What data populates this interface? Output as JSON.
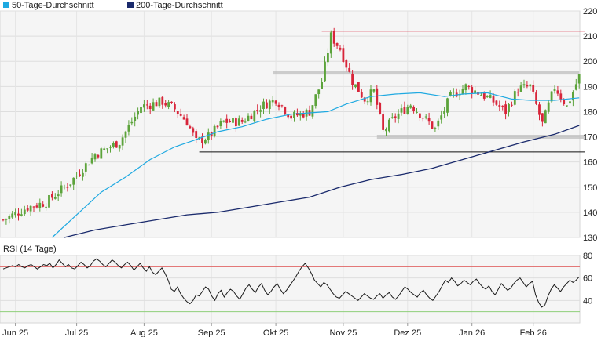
{
  "legend": [
    {
      "label": "50-Tage-Durchschnitt",
      "color": "#1fa9e1"
    },
    {
      "label": "200-Tage-Durchschnitt",
      "color": "#1a2a6c"
    }
  ],
  "chart_data": [
    {
      "type": "candlestick",
      "title": "",
      "xlabel": "",
      "ylabel": "",
      "ylim": [
        130,
        220
      ],
      "y_ticks": [
        130,
        140,
        150,
        160,
        170,
        180,
        190,
        200,
        210,
        220
      ],
      "x_ticks": [
        "Jun 25",
        "Jul 25",
        "Aug 25",
        "Sep 25",
        "Okt 25",
        "Nov 25",
        "Dez 25",
        "Jan 26",
        "Feb 26"
      ],
      "grid": true,
      "colors": {
        "up": "#5ca33b",
        "down": "#d8253a"
      },
      "price_anchors": [
        {
          "t": 0,
          "v": 137
        },
        {
          "t": 8,
          "v": 142
        },
        {
          "t": 14,
          "v": 144
        },
        {
          "t": 22,
          "v": 152
        },
        {
          "t": 30,
          "v": 163
        },
        {
          "t": 38,
          "v": 168
        },
        {
          "t": 45,
          "v": 182
        },
        {
          "t": 52,
          "v": 184
        },
        {
          "t": 56,
          "v": 181
        },
        {
          "t": 60,
          "v": 176
        },
        {
          "t": 63,
          "v": 168
        },
        {
          "t": 67,
          "v": 170
        },
        {
          "t": 72,
          "v": 176
        },
        {
          "t": 78,
          "v": 176
        },
        {
          "t": 84,
          "v": 182
        },
        {
          "t": 89,
          "v": 185
        },
        {
          "t": 94,
          "v": 178
        },
        {
          "t": 100,
          "v": 180
        },
        {
          "t": 104,
          "v": 192
        },
        {
          "t": 107,
          "v": 210
        },
        {
          "t": 110,
          "v": 205
        },
        {
          "t": 114,
          "v": 192
        },
        {
          "t": 118,
          "v": 185
        },
        {
          "t": 121,
          "v": 188
        },
        {
          "t": 124,
          "v": 172
        },
        {
          "t": 128,
          "v": 178
        },
        {
          "t": 133,
          "v": 183
        },
        {
          "t": 137,
          "v": 178
        },
        {
          "t": 141,
          "v": 173
        },
        {
          "t": 146,
          "v": 186
        },
        {
          "t": 151,
          "v": 190
        },
        {
          "t": 156,
          "v": 187
        },
        {
          "t": 160,
          "v": 184
        },
        {
          "t": 164,
          "v": 180
        },
        {
          "t": 168,
          "v": 189
        },
        {
          "t": 172,
          "v": 190
        },
        {
          "t": 176,
          "v": 175
        },
        {
          "t": 180,
          "v": 190
        },
        {
          "t": 184,
          "v": 182
        },
        {
          "t": 188,
          "v": 194
        }
      ],
      "ma50": [
        {
          "t": 16,
          "v": 130
        },
        {
          "t": 24,
          "v": 139
        },
        {
          "t": 32,
          "v": 148
        },
        {
          "t": 40,
          "v": 154
        },
        {
          "t": 48,
          "v": 161
        },
        {
          "t": 56,
          "v": 166
        },
        {
          "t": 62,
          "v": 168.5
        },
        {
          "t": 70,
          "v": 172
        },
        {
          "t": 78,
          "v": 174
        },
        {
          "t": 86,
          "v": 177
        },
        {
          "t": 94,
          "v": 179
        },
        {
          "t": 100,
          "v": 179.5
        },
        {
          "t": 106,
          "v": 180
        },
        {
          "t": 112,
          "v": 183
        },
        {
          "t": 120,
          "v": 186
        },
        {
          "t": 128,
          "v": 187
        },
        {
          "t": 136,
          "v": 187.5
        },
        {
          "t": 144,
          "v": 186
        },
        {
          "t": 150,
          "v": 187
        },
        {
          "t": 158,
          "v": 187.5
        },
        {
          "t": 166,
          "v": 185
        },
        {
          "t": 172,
          "v": 184.5
        },
        {
          "t": 180,
          "v": 184.5
        },
        {
          "t": 188,
          "v": 185.5
        }
      ],
      "ma200": [
        {
          "t": 20,
          "v": 130
        },
        {
          "t": 30,
          "v": 133
        },
        {
          "t": 40,
          "v": 135
        },
        {
          "t": 50,
          "v": 137
        },
        {
          "t": 60,
          "v": 139
        },
        {
          "t": 70,
          "v": 140
        },
        {
          "t": 80,
          "v": 142
        },
        {
          "t": 90,
          "v": 144
        },
        {
          "t": 100,
          "v": 146
        },
        {
          "t": 110,
          "v": 150
        },
        {
          "t": 120,
          "v": 153
        },
        {
          "t": 130,
          "v": 155
        },
        {
          "t": 140,
          "v": 157.5
        },
        {
          "t": 150,
          "v": 161
        },
        {
          "t": 160,
          "v": 164.5
        },
        {
          "t": 170,
          "v": 168
        },
        {
          "t": 180,
          "v": 171
        },
        {
          "t": 188,
          "v": 174.5
        }
      ],
      "reference_lines": [
        {
          "name": "resistance",
          "v": 212,
          "from_t": 104,
          "to_t": 190,
          "color": "#d8253a"
        },
        {
          "name": "resistance-zone",
          "v": 195.5,
          "from_t": 88,
          "to_t": 188,
          "color": "#bdbdbd"
        },
        {
          "name": "support-zone",
          "v": 170,
          "from_t": 122,
          "to_t": 190,
          "color": "#bdbdbd"
        },
        {
          "name": "support",
          "v": 164,
          "from_t": 64,
          "to_t": 190,
          "color": "#111111"
        }
      ]
    },
    {
      "type": "line",
      "title": "RSI (14 Tage)",
      "xlabel": "",
      "ylabel": "",
      "ylim": [
        20,
        80
      ],
      "y_ticks": [
        40,
        60,
        80
      ],
      "overbought": 70,
      "oversold": 30,
      "grid": true,
      "color": "#1a1a1a",
      "values": [
        68,
        69,
        70,
        71,
        70,
        72,
        70,
        69,
        71,
        72,
        70,
        68,
        70,
        72,
        71,
        73,
        69,
        72,
        76,
        73,
        70,
        72,
        69,
        68,
        71,
        74,
        72,
        69,
        71,
        75,
        77,
        75,
        72,
        70,
        73,
        76,
        74,
        71,
        69,
        72,
        74,
        71,
        67,
        70,
        73,
        69,
        66,
        70,
        65,
        63,
        66,
        69,
        64,
        58,
        50,
        48,
        52,
        46,
        42,
        39,
        37,
        40,
        45,
        44,
        48,
        52,
        50,
        44,
        40,
        46,
        49,
        43,
        47,
        50,
        48,
        44,
        41,
        46,
        51,
        54,
        50,
        47,
        52,
        55,
        49,
        45,
        48,
        52,
        55,
        50,
        46,
        49,
        53,
        57,
        61,
        66,
        70,
        73,
        69,
        64,
        58,
        55,
        52,
        56,
        54,
        50,
        46,
        43,
        42,
        45,
        48,
        46,
        44,
        42,
        40,
        43,
        46,
        44,
        42,
        41,
        44,
        46,
        42,
        45,
        47,
        43,
        41,
        44,
        48,
        52,
        50,
        47,
        45,
        43,
        47,
        49,
        45,
        42,
        40,
        44,
        48,
        53,
        58,
        56,
        60,
        57,
        53,
        55,
        58,
        56,
        54,
        57,
        59,
        55,
        52,
        50,
        53,
        48,
        45,
        50,
        55,
        52,
        49,
        51,
        55,
        58,
        60,
        56,
        52,
        55,
        57,
        45,
        38,
        34,
        36,
        44,
        50,
        54,
        51,
        48,
        52,
        55,
        58,
        56,
        58,
        61
      ]
    }
  ]
}
